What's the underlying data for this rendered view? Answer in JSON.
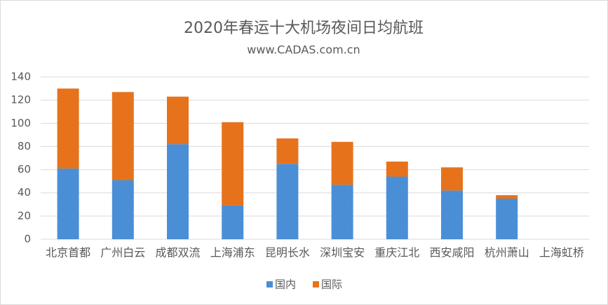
{
  "chart_data": {
    "type": "stacked_bar",
    "title": "2020年春运十大机场夜间日均航班",
    "subtitle": "www.CADAS.com.cn",
    "categories": [
      "北京首都",
      "广州白云",
      "成都双流",
      "上海浦东",
      "昆明长水",
      "深圳宝安",
      "重庆江北",
      "西安咸阳",
      "杭州萧山",
      "上海虹桥"
    ],
    "series": [
      {
        "name": "国内",
        "color": "#4a8fd6",
        "values": [
          61,
          51,
          82,
          29,
          65,
          47,
          54,
          42,
          35,
          0
        ]
      },
      {
        "name": "国际",
        "color": "#e6731c",
        "values": [
          69,
          76,
          41,
          72,
          22,
          37,
          13,
          20,
          3,
          0
        ]
      }
    ],
    "ylim": [
      0,
      140
    ],
    "yticks": [
      0,
      20,
      40,
      60,
      80,
      100,
      120,
      140
    ],
    "grid": true,
    "legend": "bottom"
  }
}
